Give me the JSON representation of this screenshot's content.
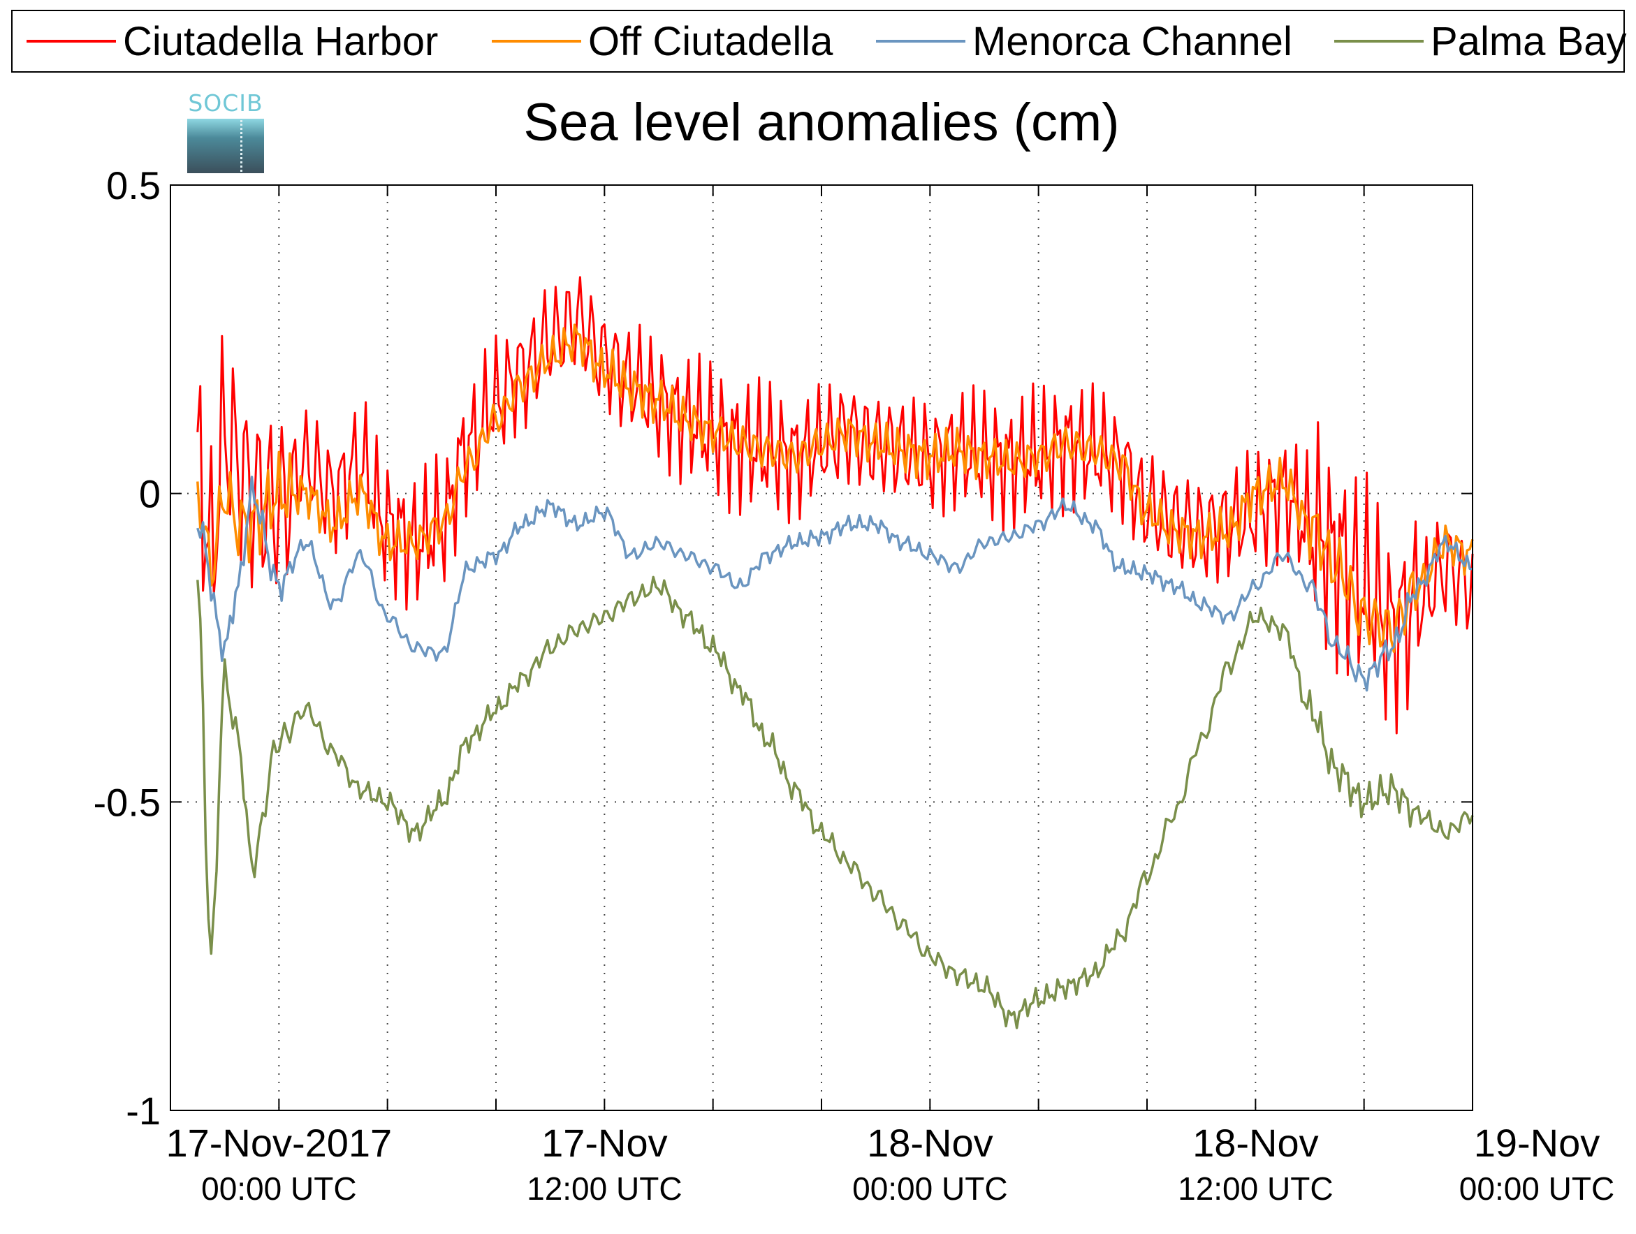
{
  "chart_data": {
    "type": "line",
    "title": "Sea level anomalies (cm)",
    "ylim": [
      -1,
      0.5
    ],
    "yticks": [
      {
        "value": 0.5,
        "label": "0.5"
      },
      {
        "value": 0,
        "label": "0"
      },
      {
        "value": -0.5,
        "label": "-0.5"
      },
      {
        "value": -1,
        "label": "-1"
      }
    ],
    "xlim_hours": [
      -4,
      44
    ],
    "xticks": [
      {
        "hour": 0,
        "line1": "17-Nov-2017",
        "line2": "00:00 UTC"
      },
      {
        "hour": 12,
        "line1": "17-Nov",
        "line2": "12:00 UTC"
      },
      {
        "hour": 24,
        "line1": "18-Nov",
        "line2": "00:00 UTC"
      },
      {
        "hour": 36,
        "line1": "18-Nov",
        "line2": "12:00 UTC"
      },
      {
        "hour": 48,
        "line1": "19-Nov",
        "line2": "00:00 UTC"
      }
    ],
    "grid": true,
    "legend_position": "top",
    "series": [
      {
        "name": "Ciutadella Harbor",
        "color": "#ff0000",
        "amp": 0.12,
        "x": [
          -3,
          -2.5,
          -2,
          -1.5,
          -1,
          0,
          1,
          2,
          3,
          4,
          5,
          6,
          7,
          8,
          9,
          10,
          11,
          12,
          13,
          14,
          15,
          16,
          17,
          18,
          19,
          20,
          21,
          22,
          23,
          24,
          25,
          26,
          27,
          28,
          29,
          30,
          31,
          32,
          33,
          34,
          35,
          36,
          37,
          38,
          39,
          40,
          41,
          42,
          43,
          44
        ],
        "y": [
          0.05,
          -0.1,
          0.1,
          0.05,
          0.0,
          -0.02,
          0.05,
          0.0,
          0.05,
          -0.05,
          -0.08,
          -0.05,
          0.08,
          0.15,
          0.2,
          0.25,
          0.28,
          0.22,
          0.18,
          0.15,
          0.12,
          0.1,
          0.08,
          0.07,
          0.06,
          0.08,
          0.1,
          0.08,
          0.07,
          0.06,
          0.07,
          0.06,
          0.05,
          0.06,
          0.08,
          0.07,
          0.05,
          -0.02,
          -0.05,
          -0.06,
          -0.05,
          -0.03,
          0.0,
          -0.05,
          -0.1,
          -0.15,
          -0.22,
          -0.18,
          -0.12,
          -0.15
        ]
      },
      {
        "name": "Off Ciutadella",
        "color": "#ff8c00",
        "amp": 0.04,
        "x": [
          -3,
          -2.5,
          -2,
          -1.5,
          -1,
          0,
          1,
          2,
          3,
          4,
          5,
          6,
          7,
          8,
          9,
          10,
          11,
          12,
          13,
          14,
          15,
          16,
          17,
          18,
          19,
          20,
          21,
          22,
          23,
          24,
          25,
          26,
          27,
          28,
          29,
          30,
          31,
          32,
          33,
          34,
          35,
          36,
          37,
          38,
          39,
          40,
          41,
          42,
          43,
          44
        ],
        "y": [
          0.0,
          -0.12,
          0.0,
          -0.05,
          -0.05,
          0.0,
          0.0,
          -0.05,
          0.0,
          -0.08,
          -0.08,
          -0.05,
          0.05,
          0.12,
          0.18,
          0.22,
          0.25,
          0.2,
          0.17,
          0.15,
          0.12,
          0.1,
          0.08,
          0.07,
          0.06,
          0.08,
          0.1,
          0.08,
          0.07,
          0.06,
          0.07,
          0.06,
          0.05,
          0.06,
          0.08,
          0.07,
          0.05,
          -0.03,
          -0.06,
          -0.07,
          -0.06,
          0.0,
          0.02,
          -0.05,
          -0.12,
          -0.2,
          -0.22,
          -0.15,
          -0.08,
          -0.1
        ]
      },
      {
        "name": "Menorca Channel",
        "color": "#6a95c0",
        "amp": 0.015,
        "x": [
          -3,
          -2,
          -1.5,
          -1,
          0,
          1,
          2,
          3,
          4,
          5,
          6,
          7,
          8,
          9,
          10,
          11,
          12,
          13,
          14,
          15,
          16,
          17,
          18,
          19,
          20,
          21,
          22,
          23,
          24,
          25,
          26,
          27,
          28,
          29,
          30,
          31,
          32,
          33,
          34,
          35,
          36,
          37,
          38,
          39,
          40,
          41,
          42,
          43,
          44
        ],
        "y": [
          -0.05,
          -0.25,
          -0.15,
          0.0,
          -0.15,
          -0.08,
          -0.18,
          -0.1,
          -0.2,
          -0.25,
          -0.26,
          -0.12,
          -0.1,
          -0.05,
          -0.02,
          -0.05,
          -0.03,
          -0.1,
          -0.08,
          -0.1,
          -0.12,
          -0.15,
          -0.1,
          -0.08,
          -0.07,
          -0.05,
          -0.05,
          -0.08,
          -0.1,
          -0.12,
          -0.08,
          -0.07,
          -0.05,
          -0.02,
          -0.05,
          -0.12,
          -0.13,
          -0.15,
          -0.18,
          -0.2,
          -0.15,
          -0.1,
          -0.15,
          -0.25,
          -0.3,
          -0.25,
          -0.15,
          -0.08,
          -0.12
        ]
      },
      {
        "name": "Palma Bay",
        "color": "#7a8f4a",
        "amp": 0.02,
        "x": [
          -3,
          -2.5,
          -2,
          -1.5,
          -1,
          0,
          1,
          2,
          3,
          4,
          5,
          6,
          7,
          8,
          9,
          10,
          11,
          12,
          13,
          14,
          15,
          16,
          17,
          18,
          19,
          20,
          21,
          22,
          23,
          24,
          25,
          26,
          27,
          28,
          29,
          30,
          31,
          32,
          33,
          34,
          35,
          36,
          37,
          38,
          39,
          40,
          41,
          42,
          43,
          44
        ],
        "y": [
          -0.15,
          -0.75,
          -0.3,
          -0.4,
          -0.6,
          -0.4,
          -0.35,
          -0.42,
          -0.48,
          -0.5,
          -0.55,
          -0.5,
          -0.4,
          -0.35,
          -0.3,
          -0.25,
          -0.22,
          -0.2,
          -0.17,
          -0.15,
          -0.2,
          -0.25,
          -0.32,
          -0.4,
          -0.48,
          -0.55,
          -0.6,
          -0.65,
          -0.7,
          -0.75,
          -0.78,
          -0.8,
          -0.85,
          -0.82,
          -0.8,
          -0.78,
          -0.72,
          -0.62,
          -0.52,
          -0.4,
          -0.28,
          -0.2,
          -0.22,
          -0.35,
          -0.45,
          -0.5,
          -0.48,
          -0.52,
          -0.55,
          -0.52
        ]
      }
    ]
  }
}
